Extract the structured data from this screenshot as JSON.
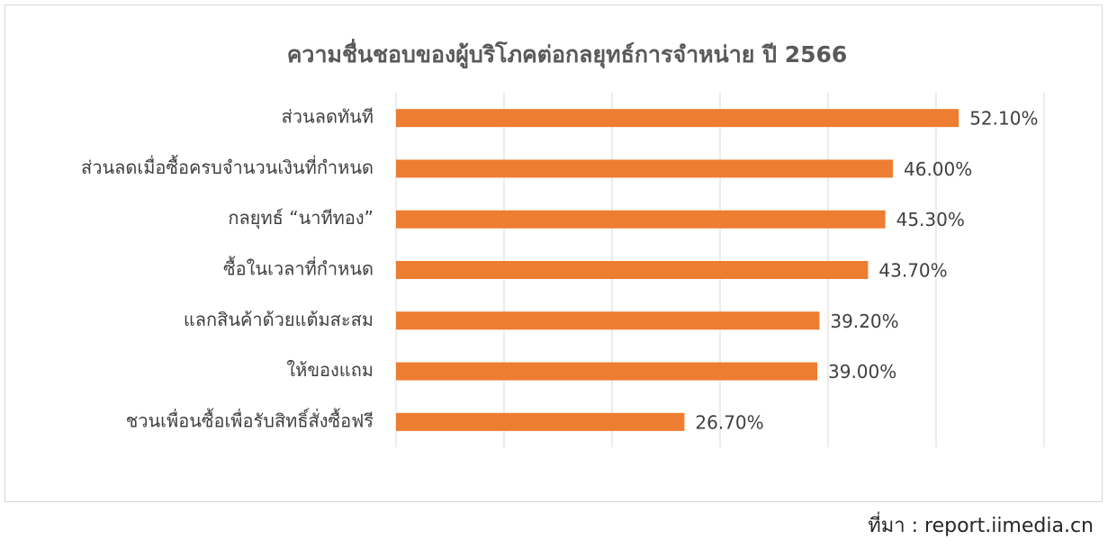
{
  "chart_data": {
    "type": "bar",
    "orientation": "horizontal",
    "title": "ความชื่นชอบของผู้บริโภคต่อกลยุทธ์การจำหน่าย ปี 2566",
    "categories": [
      "ส่วนลดทันที",
      "ส่วนลดเมื่อซื้อครบจำนวนเงินที่กำหนด",
      "กลยุทธ์ “นาทีทอง”",
      "ซื้อในเวลาที่กำหนด",
      "แลกสินค้าด้วยแต้มสะสม",
      "ให้ของแถม",
      "ชวนเพื่อนซื้อเพื่อรับสิทธิ์สั่งซื้อฟรี"
    ],
    "values": [
      52.1,
      46.0,
      45.3,
      43.7,
      39.2,
      39.0,
      26.7
    ],
    "value_labels": [
      "52.10%",
      "46.00%",
      "45.30%",
      "43.70%",
      "39.20%",
      "39.00%",
      "26.70%"
    ],
    "color": "#ED7D31",
    "xlim": [
      0,
      60
    ],
    "xticks": [
      0,
      10,
      20,
      30,
      40,
      50,
      60
    ],
    "grid": true,
    "source": "ที่มา : report.iimedia.cn"
  }
}
